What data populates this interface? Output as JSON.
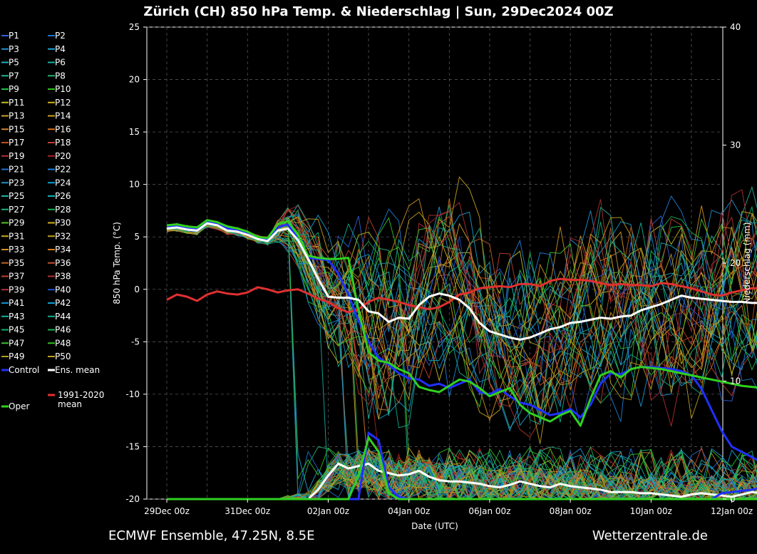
{
  "chart_data": {
    "type": "line",
    "title": "Zürich  (CH)  850 hPa Temp. & Niederschlag | Sun, 29Dec2024 00Z",
    "xlabel": "Date (UTC)",
    "ylabel": "850 hPa Temp. (°C)",
    "y2label": "Niederschlag (mm)",
    "ylim": [
      -20,
      25
    ],
    "y2lim": [
      0,
      40
    ],
    "yticks": [
      "25",
      "20",
      "15",
      "10",
      "5",
      "0",
      "-5",
      "-10",
      "-15",
      "-20"
    ],
    "y2ticks": [
      "40",
      "30",
      "20",
      "10",
      "0"
    ],
    "xticks": [
      "29Dec 00z",
      "31Dec 00z",
      "02Jan 00z",
      "04Jan 00z",
      "06Jan 00z",
      "08Jan 00z",
      "10Jan 00z",
      "12Jan 00z"
    ],
    "grid": true,
    "footer_left": "ECMWF Ensemble, 47.25N, 8.5E",
    "footer_right": "Wetterzentrale.de",
    "legend": [
      "P1",
      "P2",
      "P3",
      "P4",
      "P5",
      "P6",
      "P7",
      "P8",
      "P9",
      "P10",
      "P11",
      "P12",
      "P13",
      "P14",
      "P15",
      "P16",
      "P17",
      "P18",
      "P19",
      "P20",
      "P21",
      "P22",
      "P23",
      "P24",
      "P25",
      "P26",
      "P27",
      "P28",
      "P29",
      "P30",
      "P31",
      "P32",
      "P33",
      "P34",
      "P35",
      "P36",
      "P37",
      "P38",
      "P39",
      "P40",
      "P41",
      "P42",
      "P43",
      "P44",
      "P45",
      "P46",
      "P47",
      "P48",
      "P49",
      "P50",
      "Control",
      "Ens. mean",
      "1991-2020 mean",
      "Oper"
    ],
    "legend_colors": [
      "#2f5fd8",
      "#1f6fd0",
      "#1e8fd0",
      "#1fa0d8",
      "#1fb0c0",
      "#18b0a0",
      "#20b090",
      "#20b070",
      "#20c040",
      "#30c020",
      "#c0c020",
      "#d0b020",
      "#c8a030",
      "#d0a020",
      "#d08030",
      "#d07020",
      "#c05020",
      "#c04030",
      "#b03030",
      "#b02020",
      "#2070d0",
      "#2080d8",
      "#2090c0",
      "#10a0d0",
      "#20b0a0",
      "#10b0b0",
      "#20b080",
      "#20b050",
      "#50c020",
      "#d0b020",
      "#c8a828",
      "#c0a020",
      "#d09020",
      "#d08020",
      "#c06020",
      "#c05030",
      "#c04030",
      "#b03030",
      "#b03040",
      "#2050c8",
      "#1090d0",
      "#10a0d0",
      "#10b0a0",
      "#10b090",
      "#10b070",
      "#20b050",
      "#40c030",
      "#30c020",
      "#b0a020",
      "#c0a020",
      "#2030ff",
      "#ffffff",
      "#e03030",
      "#30d020"
    ],
    "temp_x_days": [
      0,
      0.25,
      0.5,
      0.75,
      1,
      1.25,
      1.5,
      1.75,
      2,
      2.25,
      2.5,
      2.75,
      3,
      3.25,
      3.5,
      3.75,
      4,
      4.25,
      4.5,
      4.75,
      5,
      5.25,
      5.5,
      5.75,
      6,
      6.25,
      6.5,
      6.75,
      7,
      7.25,
      7.5,
      7.75,
      8,
      8.25,
      8.5,
      8.75,
      9,
      9.25,
      9.5,
      9.75,
      10,
      10.25,
      10.5,
      10.75,
      11,
      11.25,
      11.5,
      11.75,
      12,
      12.25,
      12.5,
      12.75,
      13,
      13.25,
      13.5,
      13.75,
      14,
      14.25,
      14.5,
      14.75
    ],
    "series": [
      {
        "name": "Ens. mean",
        "values": [
          5.8,
          5.9,
          5.7,
          5.6,
          6.3,
          6.1,
          5.6,
          5.5,
          5.2,
          4.8,
          4.6,
          5.6,
          5.8,
          4.7,
          2.9,
          1.0,
          -0.7,
          -0.8,
          -0.8,
          -1.0,
          -2.1,
          -2.3,
          -3.1,
          -2.7,
          -2.8,
          -1.5,
          -0.7,
          -0.4,
          -0.6,
          -1.0,
          -1.8,
          -3.2,
          -4.0,
          -4.3,
          -4.6,
          -4.8,
          -4.6,
          -4.2,
          -3.8,
          -3.6,
          -3.2,
          -3.1,
          -2.9,
          -2.7,
          -2.8,
          -2.6,
          -2.5,
          -2.0,
          -1.7,
          -1.4,
          -1.0,
          -0.6,
          -0.8,
          -0.9,
          -1.0,
          -1.1,
          -1.2,
          -1.2,
          -1.3,
          -1.3
        ]
      },
      {
        "name": "Control",
        "values": [
          6.0,
          6.1,
          5.9,
          5.8,
          6.5,
          6.3,
          5.8,
          5.7,
          5.3,
          4.9,
          4.7,
          5.9,
          6.2,
          4.9,
          3.0,
          2.9,
          2.8,
          1.5,
          -0.5,
          -3.0,
          -5.0,
          -6.5,
          -7.2,
          -8.0,
          -8.5,
          -8.6,
          -9.2,
          -9.0,
          -9.4,
          -9.0,
          -8.6,
          -9.8,
          -10.0,
          -9.5,
          -10.2,
          -10.8,
          -11.0,
          -11.5,
          -12.0,
          -11.8,
          -11.4,
          -12.2,
          -11.0,
          -9.0,
          -8.0,
          -8.1,
          -7.6,
          -7.4,
          -7.4,
          -7.5,
          -7.6,
          -7.8,
          -8.2,
          -9.5,
          -11.5,
          -13.5,
          -15.0,
          -15.5,
          -16.0,
          -16.5
        ]
      },
      {
        "name": "Oper",
        "values": [
          6.1,
          6.2,
          6.0,
          5.9,
          6.6,
          6.4,
          6.0,
          5.8,
          5.5,
          5.0,
          4.9,
          6.2,
          6.5,
          5.2,
          3.2,
          3.0,
          2.9,
          2.9,
          3.0,
          -2.0,
          -6.0,
          -6.8,
          -7.0,
          -7.6,
          -8.0,
          -9.3,
          -9.6,
          -9.8,
          -9.2,
          -8.6,
          -8.8,
          -9.4,
          -10.2,
          -9.8,
          -9.4,
          -11.0,
          -11.8,
          -12.2,
          -12.6,
          -12.0,
          -11.6,
          -13.0,
          -10.4,
          -8.2,
          -7.8,
          -8.4,
          -7.6,
          -7.4,
          -7.5,
          -7.6,
          -7.8,
          -8.0,
          -8.2,
          -8.4,
          -8.6,
          -8.8,
          -9.0,
          -9.2,
          -9.3,
          -9.4
        ]
      },
      {
        "name": "1991-2020 mean",
        "values": [
          -1.0,
          -0.5,
          -0.7,
          -1.1,
          -0.5,
          -0.2,
          -0.4,
          -0.5,
          -0.3,
          0.2,
          0.0,
          -0.3,
          -0.1,
          0.0,
          -0.4,
          -0.9,
          -1.2,
          -1.8,
          -2.2,
          -1.9,
          -1.2,
          -0.8,
          -1.0,
          -1.2,
          -1.5,
          -1.7,
          -1.9,
          -1.7,
          -1.2,
          -0.5,
          -0.3,
          0.1,
          0.2,
          0.3,
          0.2,
          0.5,
          0.5,
          0.3,
          0.8,
          1.0,
          0.9,
          0.9,
          0.8,
          0.6,
          0.4,
          0.5,
          0.4,
          0.4,
          0.3,
          0.6,
          0.5,
          0.3,
          0.1,
          -0.2,
          -0.5,
          -0.6,
          -0.3,
          -0.1,
          0.1,
          0.1
        ]
      }
    ],
    "precip_mean": [
      0,
      0,
      0,
      0,
      0,
      0,
      0,
      0,
      0,
      0,
      0,
      0,
      0,
      0,
      0,
      0.8,
      2.0,
      3.0,
      2.6,
      2.8,
      3.0,
      2.4,
      2.2,
      2.0,
      2.1,
      2.4,
      1.9,
      1.6,
      1.5,
      1.5,
      1.4,
      1.3,
      1.1,
      1.0,
      1.2,
      1.5,
      1.3,
      1.1,
      1.0,
      1.3,
      1.1,
      1.0,
      0.9,
      0.8,
      0.6,
      0.6,
      0.6,
      0.5,
      0.5,
      0.4,
      0.3,
      0.2,
      0.4,
      0.5,
      0.4,
      0.3,
      0.2,
      0.4,
      0.6,
      0.5
    ],
    "precip_control": [
      0,
      0,
      0,
      0,
      0,
      0,
      0,
      0,
      0,
      0,
      0,
      0,
      0,
      0,
      0,
      0,
      0,
      0,
      0,
      0,
      5.6,
      5.0,
      1.0,
      0.2,
      0,
      0,
      0,
      0,
      0,
      0,
      0,
      0,
      0,
      0,
      0,
      0,
      0,
      0,
      0,
      0,
      0,
      0,
      0,
      0,
      0,
      0,
      0,
      0,
      0,
      0,
      0,
      0,
      0,
      0,
      0,
      0.5,
      0.6,
      0.7,
      0.8,
      1.0
    ]
  }
}
